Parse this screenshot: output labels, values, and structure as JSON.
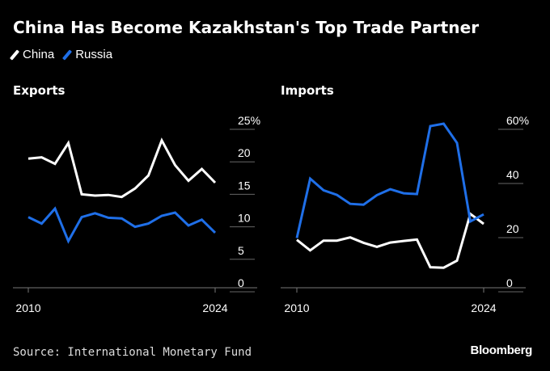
{
  "title": "China Has Become Kazakhstan's Top Trade Partner",
  "legend": [
    {
      "name": "China",
      "color": "#ffffff"
    },
    {
      "name": "Russia",
      "color": "#1f6fe8"
    }
  ],
  "source": "Source: International Monetary Fund",
  "brand": "Bloomberg",
  "chart_data": [
    {
      "type": "line",
      "title": "Exports",
      "x": [
        2010,
        2011,
        2012,
        2013,
        2014,
        2015,
        2016,
        2017,
        2018,
        2019,
        2020,
        2021,
        2022,
        2023,
        2024
      ],
      "xticks": [
        "2010",
        "2024"
      ],
      "yticks": [
        "25%",
        "20",
        "15",
        "10",
        "5",
        "0"
      ],
      "ylim": [
        0,
        25
      ],
      "series": [
        {
          "name": "China",
          "color": "#ffffff",
          "values": [
            19.5,
            19.7,
            18.7,
            21.9,
            14.0,
            13.8,
            13.9,
            13.6,
            14.9,
            16.9,
            22.3,
            18.5,
            16.1,
            17.9,
            15.8
          ]
        },
        {
          "name": "Russia",
          "color": "#1f6fe8",
          "values": [
            10.5,
            9.5,
            11.8,
            6.8,
            10.5,
            11.1,
            10.4,
            10.3,
            9.0,
            9.5,
            10.7,
            11.2,
            9.2,
            10.1,
            8.1
          ]
        }
      ]
    },
    {
      "type": "line",
      "title": "Imports",
      "x": [
        2010,
        2011,
        2012,
        2013,
        2014,
        2015,
        2016,
        2017,
        2018,
        2019,
        2020,
        2021,
        2022,
        2023,
        2024
      ],
      "xticks": [
        "2010",
        "2024"
      ],
      "yticks": [
        "60%",
        "40",
        "20",
        "0"
      ],
      "ylim": [
        0,
        60
      ],
      "series": [
        {
          "name": "China",
          "color": "#ffffff",
          "values": [
            16.8,
            12.9,
            16.5,
            16.5,
            17.7,
            15.7,
            14.2,
            15.8,
            16.4,
            16.9,
            6.7,
            6.5,
            9.1,
            26.4,
            22.7
          ]
        },
        {
          "name": "Russia",
          "color": "#1f6fe8",
          "values": [
            17.5,
            39.4,
            35.1,
            33.4,
            30.1,
            29.8,
            33.3,
            35.5,
            34.0,
            33.7,
            58.8,
            59.7,
            52.6,
            23.6,
            26.2
          ]
        }
      ]
    }
  ]
}
